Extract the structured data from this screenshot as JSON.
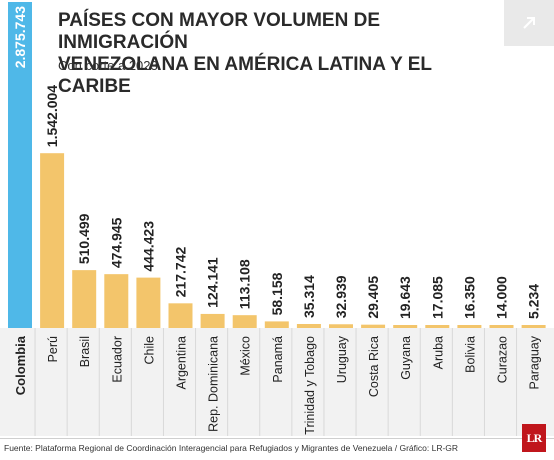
{
  "header": {
    "title_line1": "PAÍSES CON MAYOR VOLUMEN DE INMIGRACIÓN",
    "title_line2": "VENEZOLANA EN AMÉRICA LATINA Y EL CARIBE",
    "subtitle": "Con corte a 2023"
  },
  "icons": {
    "expand": "arrow-up-right-icon",
    "logo": "lr-logo"
  },
  "logo_text": "LR",
  "source": "Fuente: Plataforma Regional de Coordinación Interagencial para Refugiados y Migrantes de Venezuela / Gráfico: LR-GR",
  "colors": {
    "highlight_bar": "#4fb8e8",
    "bars": "#f3c56b",
    "label_background": "#f2f2f2",
    "logo": "#c0161c"
  },
  "chart_data": {
    "type": "bar",
    "title": "PAÍSES CON MAYOR VOLUMEN DE INMIGRACIÓN VENEZOLANA EN AMÉRICA LATINA Y EL CARIBE",
    "subtitle": "Con corte a 2023",
    "xlabel": "",
    "ylabel": "",
    "ylim": [
      0,
      2875743
    ],
    "grid": false,
    "legend": "none",
    "highlight_category": "Colombia",
    "categories": [
      "Colombia",
      "Perú",
      "Brasil",
      "Ecuador",
      "Chile",
      "Argentina",
      "Rep. Dominicana",
      "México",
      "Panamá",
      "Trinidad y Tobago",
      "Uruguay",
      "Costa Rica",
      "Guyana",
      "Aruba",
      "Bolivia",
      "Curazao",
      "Paraguay"
    ],
    "values": [
      2875743,
      1542004,
      510499,
      474945,
      444423,
      217742,
      124141,
      113108,
      58158,
      35314,
      32939,
      29405,
      19643,
      17085,
      16350,
      14000,
      5234
    ],
    "value_labels": [
      "2.875.743",
      "1.542.004",
      "510.499",
      "474.945",
      "444.423",
      "217.742",
      "124.141",
      "113.108",
      "58.158",
      "35.314",
      "32.939",
      "29.405",
      "19.643",
      "17.085",
      "16.350",
      "14.000",
      "5.234"
    ]
  }
}
